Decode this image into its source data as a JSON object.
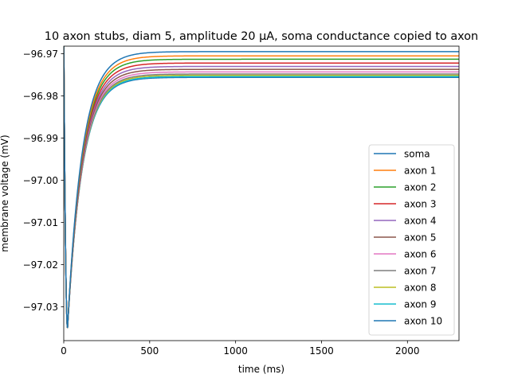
{
  "chart_data": {
    "type": "line",
    "title": "10 axon stubs, diam 5, amplitude 20 µA, soma conductance copied to axon",
    "xlabel": "time (ms)",
    "ylabel": "membrane voltage (mV)",
    "xlim": [
      0,
      2300
    ],
    "ylim": [
      -97.038,
      -96.9682
    ],
    "xticks": [
      0,
      500,
      1000,
      1500,
      2000
    ],
    "yticks": [
      -97.03,
      -97.02,
      -97.01,
      -97.0,
      -96.99,
      -96.98,
      -96.97
    ],
    "grid": false,
    "legend_position": "lower-right",
    "resting_value": -96.966,
    "trough": {
      "t": 22,
      "v": -97.035
    },
    "rise_time_constant_ms": 85,
    "series": [
      {
        "name": "soma",
        "color": "#1f77b4",
        "plateau": -96.9695
      },
      {
        "name": "axon 1",
        "color": "#ff7f0e",
        "plateau": -96.9705
      },
      {
        "name": "axon 2",
        "color": "#2ca02c",
        "plateau": -96.9713
      },
      {
        "name": "axon 3",
        "color": "#d62728",
        "plateau": -96.9722
      },
      {
        "name": "axon 4",
        "color": "#9467bd",
        "plateau": -96.973
      },
      {
        "name": "axon 5",
        "color": "#8c564b",
        "plateau": -96.9737
      },
      {
        "name": "axon 6",
        "color": "#e377c2",
        "plateau": -96.9743
      },
      {
        "name": "axon 7",
        "color": "#7f7f7f",
        "plateau": -96.9748
      },
      {
        "name": "axon 8",
        "color": "#bcbd22",
        "plateau": -96.9751
      },
      {
        "name": "axon 9",
        "color": "#17becf",
        "plateau": -96.9754
      },
      {
        "name": "axon 10",
        "color": "#1f77b4",
        "plateau": -96.9756
      }
    ]
  }
}
